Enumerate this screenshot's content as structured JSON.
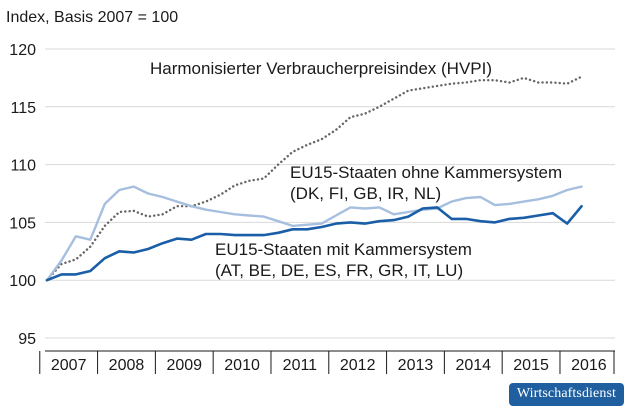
{
  "chart_data": {
    "type": "line",
    "ylabel": "Index, Basis 2007 = 100",
    "ylim": [
      95,
      120
    ],
    "yticks": [
      95,
      100,
      105,
      110,
      115,
      120
    ],
    "xticks": [
      "2007",
      "2008",
      "2009",
      "2010",
      "2011",
      "2012",
      "2013",
      "2014",
      "2015",
      "2016"
    ],
    "x": [
      "2007 Q1",
      "2007 Q2",
      "2007 Q3",
      "2007 Q4",
      "2008 Q1",
      "2008 Q2",
      "2008 Q3",
      "2008 Q4",
      "2009 Q1",
      "2009 Q2",
      "2009 Q3",
      "2009 Q4",
      "2010 Q1",
      "2010 Q2",
      "2010 Q3",
      "2010 Q4",
      "2011 Q1",
      "2011 Q2",
      "2011 Q3",
      "2011 Q4",
      "2012 Q1",
      "2012 Q2",
      "2012 Q3",
      "2012 Q4",
      "2013 Q1",
      "2013 Q2",
      "2013 Q3",
      "2013 Q4",
      "2014 Q1",
      "2014 Q2",
      "2014 Q3",
      "2014 Q4",
      "2015 Q1",
      "2015 Q2",
      "2015 Q3",
      "2015 Q4",
      "2016 Q1",
      "2016 Q2"
    ],
    "grid": true,
    "series": [
      {
        "name": "Harmonisierter Verbraucherpreisindex (HVPI)",
        "style": "dotted",
        "color": "#666666",
        "values": [
          100.0,
          101.4,
          101.8,
          102.9,
          104.7,
          105.9,
          106.0,
          105.5,
          105.7,
          106.4,
          106.4,
          106.8,
          107.4,
          108.2,
          108.6,
          108.8,
          110.0,
          111.1,
          111.7,
          112.2,
          113.0,
          114.1,
          114.4,
          115.0,
          115.7,
          116.4,
          116.6,
          116.8,
          117.0,
          117.1,
          117.3,
          117.3,
          117.1,
          117.5,
          117.1,
          117.1,
          117.0,
          117.6
        ]
      },
      {
        "name": "EU15-Staaten ohne Kammersystem (DK, FI, GB, IR, NL)",
        "style": "solid",
        "color": "#a6bfdf",
        "values": [
          100.0,
          101.7,
          103.8,
          103.5,
          106.6,
          107.8,
          108.1,
          107.5,
          107.2,
          106.8,
          106.4,
          106.1,
          105.9,
          105.7,
          105.6,
          105.5,
          105.1,
          104.7,
          104.8,
          104.9,
          105.6,
          106.3,
          106.2,
          106.3,
          105.7,
          105.9,
          106.1,
          106.2,
          106.8,
          107.1,
          107.2,
          106.5,
          106.6,
          106.8,
          107.0,
          107.3,
          107.8,
          108.1
        ]
      },
      {
        "name": "EU15-Staaten mit Kammersystem (AT, BE, DE, ES, FR, GR, IT, LU)",
        "style": "solid",
        "color": "#1a5ea8",
        "values": [
          100.0,
          100.5,
          100.5,
          100.8,
          101.9,
          102.5,
          102.4,
          102.7,
          103.2,
          103.6,
          103.5,
          104.0,
          104.0,
          103.9,
          103.9,
          103.9,
          104.1,
          104.4,
          104.4,
          104.6,
          104.9,
          105.0,
          104.9,
          105.1,
          105.2,
          105.5,
          106.2,
          106.3,
          105.3,
          105.3,
          105.1,
          105.0,
          105.3,
          105.4,
          105.6,
          105.8,
          104.9,
          106.4
        ]
      }
    ],
    "annotations": [
      {
        "series": 0,
        "lines": [
          "Harmonisierter Verbraucherpreisindex (HVPI)"
        ]
      },
      {
        "series": 1,
        "lines": [
          "EU15-Staaten ohne Kammersystem",
          "(DK, FI, GB, IR, NL)"
        ]
      },
      {
        "series": 2,
        "lines": [
          "EU15-Staaten mit Kammersystem",
          "(AT, BE, DE, ES, FR, GR, IT, LU)"
        ]
      }
    ]
  },
  "badge": "Wirtschaftsdienst"
}
